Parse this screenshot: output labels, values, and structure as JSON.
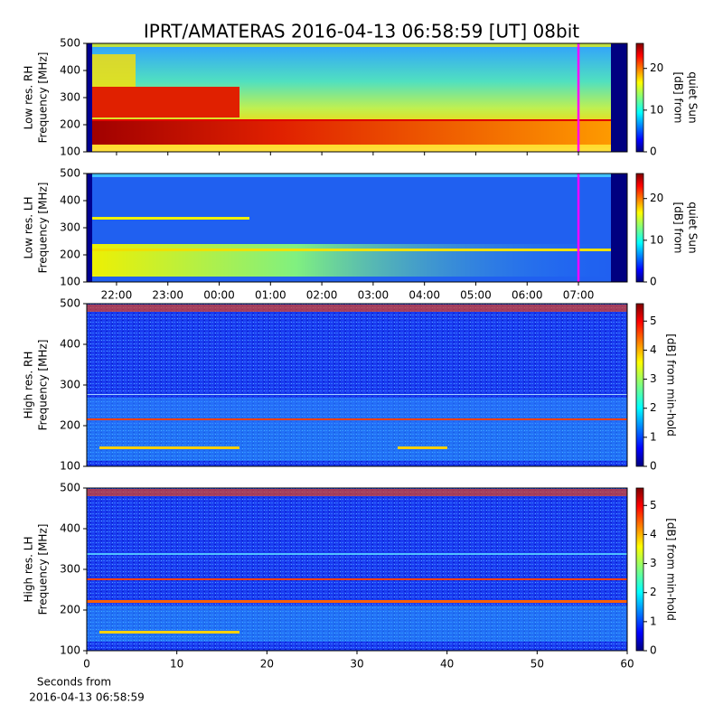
{
  "title": "IPRT/AMATERAS 2016-04-13 06:58:59 [UT]   08bit",
  "chart_data": [
    {
      "type": "heatmap",
      "ylabel": [
        "Low res. RH",
        "Frequency [MHz]"
      ],
      "ylim": [
        100,
        500
      ],
      "yticks": [
        100,
        200,
        300,
        400,
        500
      ],
      "xlim": [
        21.42,
        31.95
      ],
      "xticks": [
        22,
        23,
        24,
        25,
        26,
        27,
        28,
        29,
        30,
        31
      ],
      "marker_x": 31,
      "marker_color": "#ff00ff",
      "colorbar_label": [
        "[dB] from",
        "quiet Sun"
      ],
      "clim": [
        0,
        26
      ],
      "cticks": [
        0,
        10,
        20
      ]
    },
    {
      "type": "heatmap",
      "ylabel": [
        "Low res. LH",
        "Frequency [MHz]"
      ],
      "ylim": [
        100,
        500
      ],
      "yticks": [
        100,
        200,
        300,
        400,
        500
      ],
      "xlim": [
        21.42,
        31.95
      ],
      "xticks": [
        {
          "value": 22,
          "label": "22:00"
        },
        {
          "value": 23,
          "label": "23:00"
        },
        {
          "value": 24,
          "label": "00:00"
        },
        {
          "value": 25,
          "label": "01:00"
        },
        {
          "value": 26,
          "label": "02:00"
        },
        {
          "value": 27,
          "label": "03:00"
        },
        {
          "value": 28,
          "label": "04:00"
        },
        {
          "value": 29,
          "label": "05:00"
        },
        {
          "value": 30,
          "label": "06:00"
        },
        {
          "value": 31,
          "label": "07:00"
        }
      ],
      "marker_x": 31,
      "marker_color": "#ff00ff",
      "colorbar_label": [
        "[dB] from",
        "quiet Sun"
      ],
      "clim": [
        0,
        26
      ],
      "cticks": [
        0,
        10,
        20
      ]
    },
    {
      "type": "heatmap",
      "ylabel": [
        "High res. RH",
        "Frequency [MHz]"
      ],
      "ylim": [
        100,
        500
      ],
      "yticks": [
        100,
        200,
        300,
        400,
        500
      ],
      "xlim": [
        0,
        60
      ],
      "colorbar_label": [
        "[dB] from min-hold"
      ],
      "clim": [
        0,
        5.6
      ],
      "cticks": [
        0,
        1,
        2,
        3,
        4,
        5
      ]
    },
    {
      "type": "heatmap",
      "ylabel": [
        "High res. LH",
        "Frequency [MHz]"
      ],
      "ylim": [
        100,
        500
      ],
      "yticks": [
        100,
        200,
        300,
        400,
        500
      ],
      "xlim": [
        0,
        60
      ],
      "xticks": [
        0,
        10,
        20,
        30,
        40,
        50,
        60
      ],
      "xlabel": [
        "Seconds from",
        "2016-04-13 06:58:59"
      ],
      "colorbar_label": [
        "[dB] from min-hold"
      ],
      "clim": [
        0,
        5.6
      ],
      "cticks": [
        0,
        1,
        2,
        3,
        4,
        5
      ]
    }
  ]
}
